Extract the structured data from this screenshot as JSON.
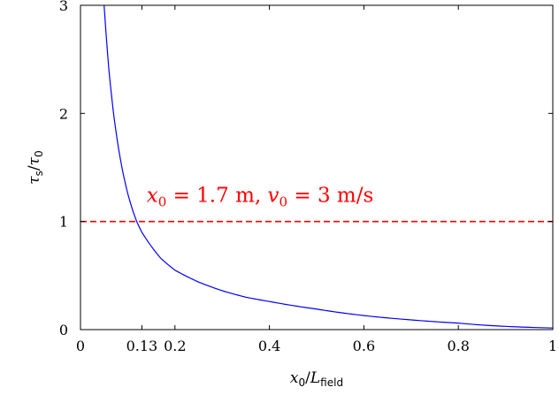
{
  "chart_data": {
    "type": "line",
    "title": "",
    "xlabel": {
      "main": "x",
      "main_sub": "0",
      "sep": "/",
      "den": "L",
      "den_sub": "field"
    },
    "ylabel": {
      "num": "τ",
      "num_sub": "s",
      "sep": "/",
      "den": "τ",
      "den_sub": "0"
    },
    "xlim": [
      0,
      1
    ],
    "ylim": [
      0,
      3
    ],
    "xticks": [
      0,
      0.13,
      0.2,
      0.4,
      0.6,
      0.8,
      1
    ],
    "xtick_labels": [
      "0",
      "0.13",
      "0.2",
      "0.4",
      "0.6",
      "0.8",
      "1"
    ],
    "yticks": [
      0,
      1,
      2,
      3
    ],
    "ytick_labels": [
      "0",
      "1",
      "2",
      "3"
    ],
    "grid": false,
    "series": [
      {
        "color": "#0000ff",
        "style": "solid",
        "x": [
          0.05,
          0.06,
          0.07,
          0.08,
          0.09,
          0.1,
          0.11,
          0.12,
          0.13,
          0.15,
          0.17,
          0.2,
          0.25,
          0.3,
          0.35,
          0.4,
          0.5,
          0.6,
          0.7,
          0.8,
          0.9,
          1.0
        ],
        "y": [
          3.0,
          2.41,
          2.0,
          1.69,
          1.45,
          1.26,
          1.11,
          0.99,
          0.9,
          0.77,
          0.66,
          0.55,
          0.44,
          0.36,
          0.3,
          0.26,
          0.19,
          0.13,
          0.09,
          0.06,
          0.03,
          0.015
        ]
      },
      {
        "color": "#ff0000",
        "style": "dashed",
        "x": [
          0,
          1
        ],
        "y": [
          1,
          1
        ]
      }
    ],
    "annotation": {
      "x0_sym": "x",
      "x0_sub": "0",
      "x0_val": " = 1.7 m, ",
      "v0_sym": "v",
      "v0_sub": "0",
      "v0_val": " = 3 m/s",
      "color": "#ff0000",
      "at_x": 0.14,
      "at_y": 1.18
    }
  }
}
